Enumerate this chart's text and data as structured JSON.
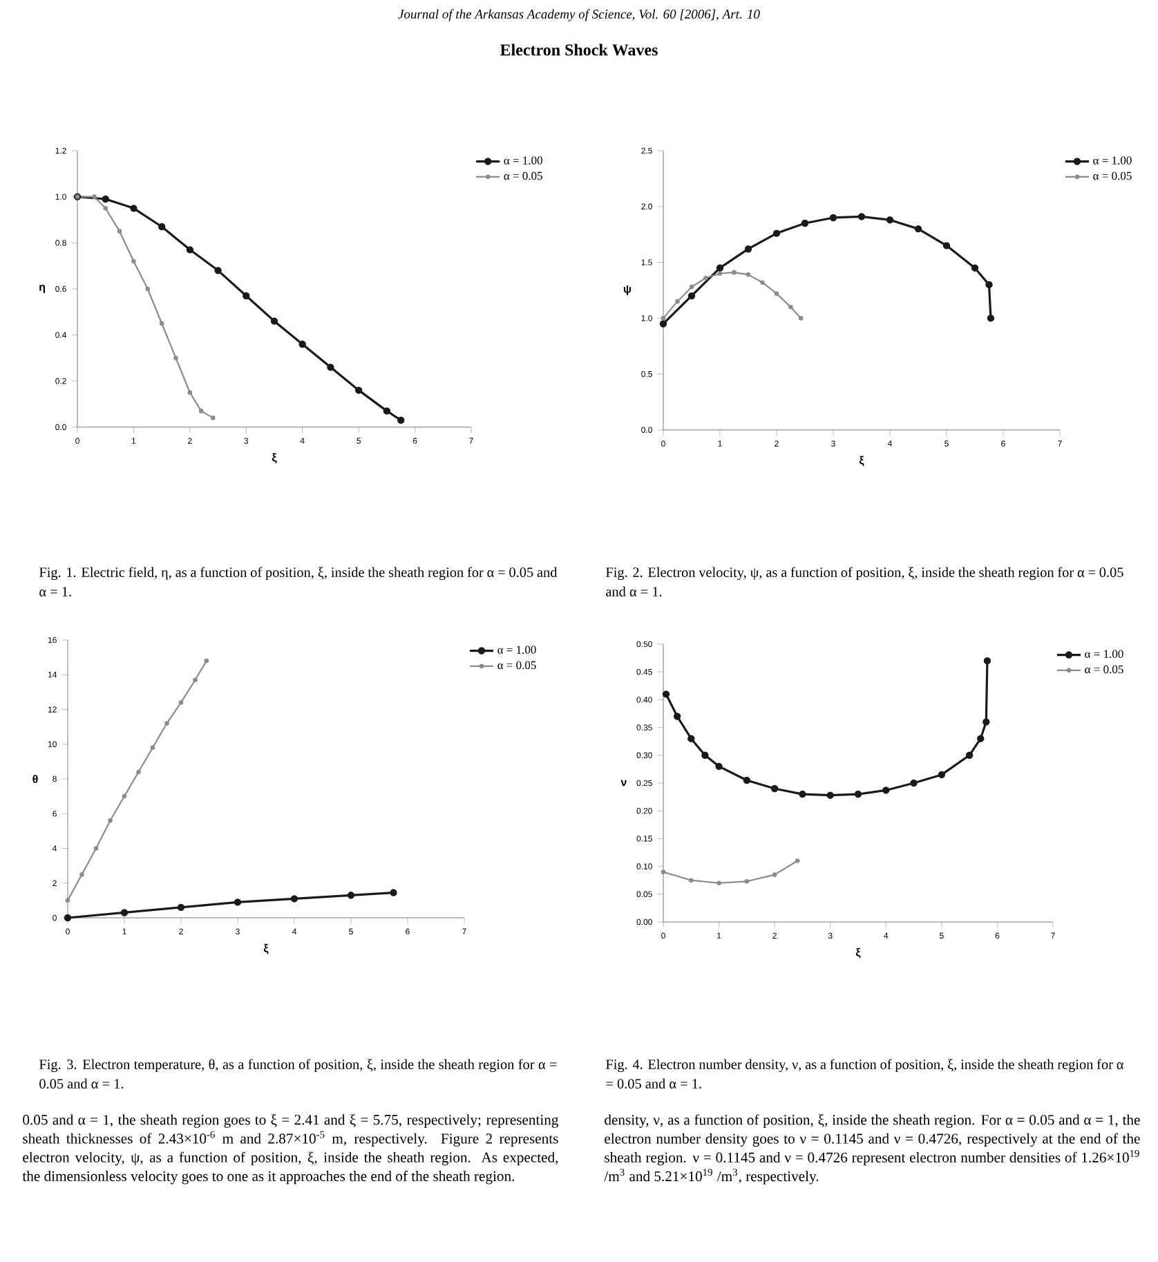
{
  "chart_data": [
    {
      "type": "other",
      "title": "Electron Shock Waves",
      "annotations": [
        "Journal of the Arkansas Academy of Science, Vol. 60 [2006], Art. 10",
        "0.05 and α = 1, the sheath region goes to ξ = 2.41 and ξ = 5.75, respectively; representing sheath thicknesses of 2.43×10$^{-6}$ m and 2.87×10$^{-5}$ m, respectively. Figure 2 represents electron velocity, ψ, as a function of position, ξ, inside the sheath region. As expected, the dimensionless velocity goes to one as it approaches the end of the sheath region.",
        "density, ν, as a function of position, ξ, inside the sheath region. For α = 0.05 and α = 1, the electron number density goes to ν = 0.1145 and ν = 0.4726, respectively at the end of the sheath region. ν = 0.1145 and ν = 0.4726 represent electron number densities of 1.26×10$^{19}$ /m$^{3}$ and 5.21×10$^{19}$ /m$^{3}$, respectively."
      ]
    },
    {
      "type": "line",
      "xlabel": "ξ",
      "ylabel": "η",
      "xlim": [
        0,
        7
      ],
      "xticks": [
        0,
        1,
        2,
        3,
        4,
        5,
        6,
        7
      ],
      "ylim": [
        0,
        1.2
      ],
      "yticks": [
        {
          "value": 0,
          "label": "0.0"
        },
        {
          "value": 0.2,
          "label": "0.2"
        },
        {
          "value": 0.4,
          "label": "0.4"
        },
        {
          "value": 0.6,
          "label": "0.6"
        },
        {
          "value": 0.8,
          "label": "0.8"
        },
        {
          "value": 1,
          "label": "1.0"
        },
        {
          "value": 1.2,
          "label": "1.2"
        }
      ],
      "legend": "top right",
      "marker": "circle",
      "annotations": [
        "Fig. 1. Electric field, η, as a function of position, ξ, inside the sheath region for α = 0.05 and α = 1."
      ],
      "series": [
        {
          "name": "α = 1.00",
          "color": "#1a1a1a",
          "x": [
            0,
            0.5,
            1,
            1.5,
            2,
            2.5,
            3,
            3.5,
            4,
            4.5,
            5,
            5.5,
            5.75
          ],
          "values": [
            1.0,
            0.99,
            0.95,
            0.87,
            0.77,
            0.68,
            0.57,
            0.46,
            0.36,
            0.26,
            0.16,
            0.07,
            0.03
          ]
        },
        {
          "name": "α = 0.05",
          "color": "#8c8c8c",
          "x": [
            0,
            0.3,
            0.5,
            0.75,
            1,
            1.25,
            1.5,
            1.75,
            2,
            2.2,
            2.41
          ],
          "values": [
            1.0,
            1.0,
            0.95,
            0.85,
            0.72,
            0.6,
            0.45,
            0.3,
            0.15,
            0.07,
            0.04
          ]
        }
      ]
    },
    {
      "type": "line",
      "xlabel": "ξ",
      "ylabel": "ψ",
      "xlim": [
        0,
        7
      ],
      "xticks": [
        0,
        1,
        2,
        3,
        4,
        5,
        6,
        7
      ],
      "ylim": [
        0,
        2.5
      ],
      "yticks": [
        {
          "value": 0,
          "label": "0.0"
        },
        {
          "value": 0.5,
          "label": "0.5"
        },
        {
          "value": 1,
          "label": "1.0"
        },
        {
          "value": 1.5,
          "label": "1.5"
        },
        {
          "value": 2,
          "label": "2.0"
        },
        {
          "value": 2.5,
          "label": "2.5"
        }
      ],
      "legend": "top right",
      "marker": "circle",
      "annotations": [
        "Fig. 2. Electron velocity, ψ, as a function of position, ξ, inside the sheath region for α = 0.05 and α = 1."
      ],
      "series": [
        {
          "name": "α = 1.00",
          "color": "#1a1a1a",
          "x": [
            0,
            0.5,
            1,
            1.5,
            2,
            2.5,
            3,
            3.5,
            4,
            4.5,
            5,
            5.5,
            5.75,
            5.78
          ],
          "values": [
            0.95,
            1.2,
            1.45,
            1.62,
            1.76,
            1.85,
            1.9,
            1.91,
            1.88,
            1.8,
            1.65,
            1.45,
            1.3,
            1.0
          ]
        },
        {
          "name": "α = 0.05",
          "color": "#8c8c8c",
          "x": [
            0,
            0.25,
            0.5,
            0.75,
            1,
            1.25,
            1.5,
            1.75,
            2,
            2.25,
            2.43
          ],
          "values": [
            1.0,
            1.15,
            1.28,
            1.36,
            1.4,
            1.41,
            1.39,
            1.32,
            1.22,
            1.1,
            1.0
          ]
        }
      ]
    },
    {
      "type": "line",
      "xlabel": "ξ",
      "ylabel": "θ",
      "xlim": [
        0,
        7
      ],
      "xticks": [
        0,
        1,
        2,
        3,
        4,
        5,
        6,
        7
      ],
      "ylim": [
        0,
        16
      ],
      "yticks": [
        0,
        2,
        4,
        6,
        8,
        10,
        12,
        14,
        16
      ],
      "legend": "top right",
      "marker": "circle",
      "annotations": [
        "Fig. 3. Electron temperature, θ, as a function of position, ξ, inside the sheath region for α = 0.05 and α = 1."
      ],
      "series": [
        {
          "name": "α = 1.00",
          "color": "#1a1a1a",
          "x": [
            0,
            1,
            2,
            3,
            4,
            5,
            5.75
          ],
          "values": [
            0,
            0.3,
            0.6,
            0.9,
            1.1,
            1.3,
            1.45
          ]
        },
        {
          "name": "α = 0.05",
          "color": "#8c8c8c",
          "x": [
            0,
            0.25,
            0.5,
            0.75,
            1,
            1.25,
            1.5,
            1.75,
            2,
            2.25,
            2.45
          ],
          "values": [
            1.0,
            2.5,
            4.0,
            5.6,
            7.0,
            8.4,
            9.8,
            11.2,
            12.4,
            13.7,
            14.8
          ]
        }
      ]
    },
    {
      "type": "line",
      "xlabel": "ξ",
      "ylabel": "ν",
      "xlim": [
        0,
        7
      ],
      "xticks": [
        0,
        1,
        2,
        3,
        4,
        5,
        6,
        7
      ],
      "ylim": [
        0,
        0.5
      ],
      "yticks": [
        {
          "value": 0,
          "label": "0.00"
        },
        {
          "value": 0.05,
          "label": "0.05"
        },
        {
          "value": 0.1,
          "label": "0.10"
        },
        {
          "value": 0.15,
          "label": "0.15"
        },
        {
          "value": 0.2,
          "label": "0.20"
        },
        {
          "value": 0.25,
          "label": "0.25"
        },
        {
          "value": 0.3,
          "label": "0.30"
        },
        {
          "value": 0.35,
          "label": "0.35"
        },
        {
          "value": 0.4,
          "label": "0.40"
        },
        {
          "value": 0.45,
          "label": "0.45"
        },
        {
          "value": 0.5,
          "label": "0.50"
        }
      ],
      "legend": "top right",
      "marker": "circle",
      "annotations": [
        "Fig. 4. Electron number density, ν, as a function of position, ξ, inside the sheath region for α = 0.05 and α = 1."
      ],
      "series": [
        {
          "name": "α = 1.00",
          "color": "#1a1a1a",
          "x": [
            0.05,
            0.25,
            0.5,
            0.75,
            1,
            1.5,
            2,
            2.5,
            3,
            3.5,
            4,
            4.5,
            5,
            5.5,
            5.7,
            5.8,
            5.82
          ],
          "values": [
            0.41,
            0.37,
            0.33,
            0.3,
            0.28,
            0.255,
            0.24,
            0.23,
            0.228,
            0.23,
            0.237,
            0.25,
            0.265,
            0.3,
            0.33,
            0.36,
            0.47
          ]
        },
        {
          "name": "α = 0.05",
          "color": "#8c8c8c",
          "x": [
            0,
            0.5,
            1,
            1.5,
            2,
            2.41
          ],
          "values": [
            0.09,
            0.075,
            0.07,
            0.073,
            0.085,
            0.11
          ]
        }
      ]
    }
  ]
}
